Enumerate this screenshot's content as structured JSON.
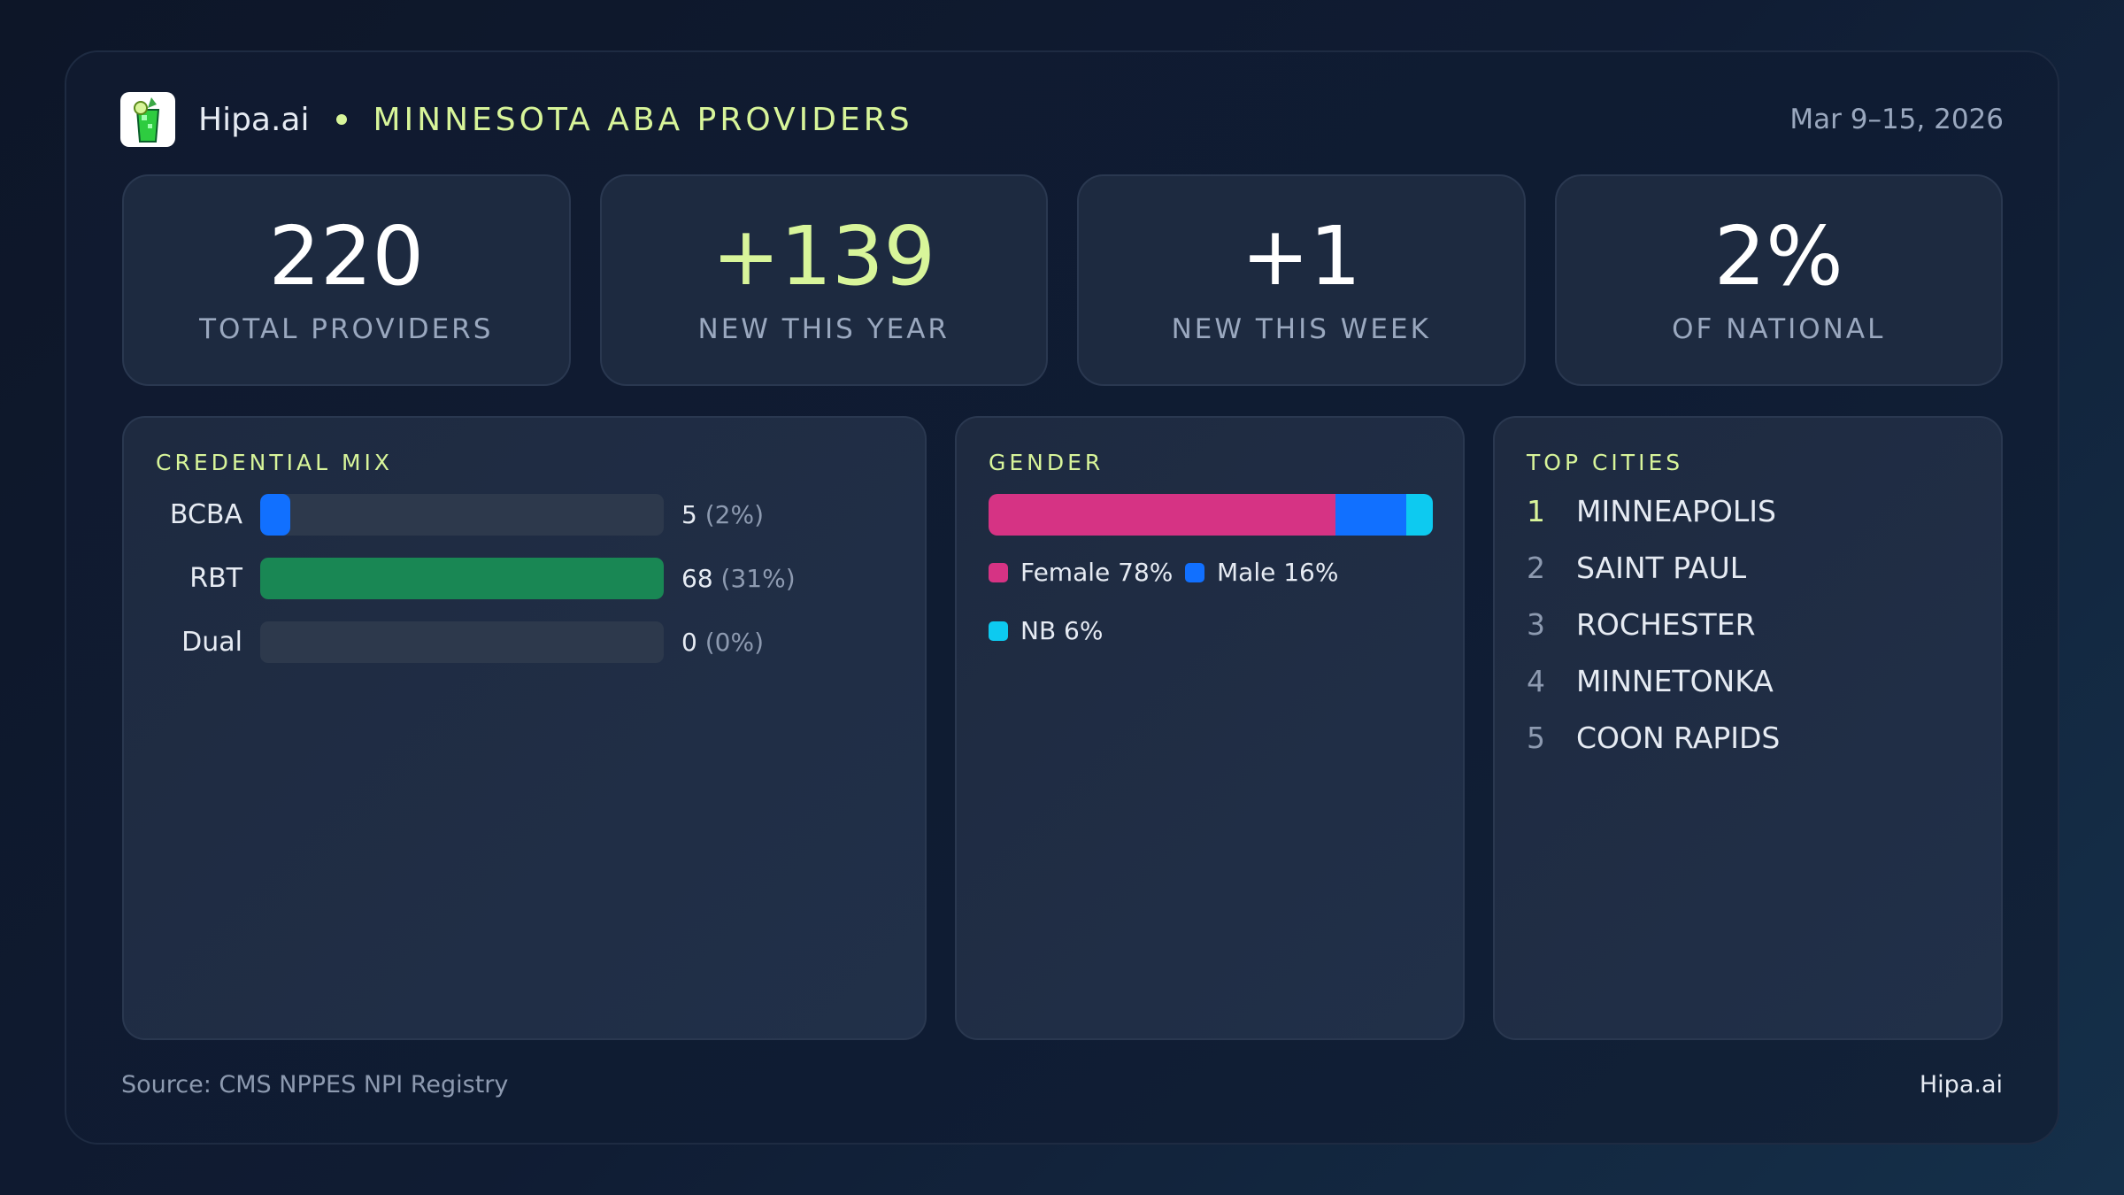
{
  "header": {
    "brand": "Hipa.ai",
    "title": "MINNESOTA ABA PROVIDERS",
    "date": "Mar 9–15, 2026",
    "logo_icon": "cocktail-glass-icon"
  },
  "stats": [
    {
      "value": "220",
      "label": "TOTAL PROVIDERS",
      "accent": false
    },
    {
      "value": "+139",
      "label": "NEW THIS YEAR",
      "accent": true
    },
    {
      "value": "+1",
      "label": "NEW THIS WEEK",
      "accent": false
    },
    {
      "value": "2%",
      "label": "OF NATIONAL",
      "accent": false
    }
  ],
  "credential": {
    "heading": "CREDENTIAL MIX",
    "rows": [
      {
        "name": "BCBA",
        "count": 5,
        "count_text": "5",
        "pct_text": "(2%)",
        "color": "#1170ff"
      },
      {
        "name": "RBT",
        "count": 68,
        "count_text": "68",
        "pct_text": "(31%)",
        "color": "#198754"
      },
      {
        "name": "Dual",
        "count": 0,
        "count_text": "0",
        "pct_text": "(0%)",
        "color": "#1170ff"
      }
    ]
  },
  "gender": {
    "heading": "GENDER",
    "segments": [
      {
        "label": "Female 78%",
        "pct": 78,
        "color": "#d63384"
      },
      {
        "label": "Male 16%",
        "pct": 16,
        "color": "#1170ff"
      },
      {
        "label": "NB 6%",
        "pct": 6,
        "color": "#0dcaf0"
      }
    ]
  },
  "cities": {
    "heading": "TOP CITIES",
    "items": [
      {
        "rank": "1",
        "name": "MINNEAPOLIS"
      },
      {
        "rank": "2",
        "name": "SAINT PAUL"
      },
      {
        "rank": "3",
        "name": "ROCHESTER"
      },
      {
        "rank": "4",
        "name": "MINNETONKA"
      },
      {
        "rank": "5",
        "name": "COON RAPIDS"
      }
    ]
  },
  "footer": {
    "source": "Source: CMS NPPES NPI Registry",
    "brand": "Hipa.ai"
  },
  "colors": {
    "accent": "#d8f59a",
    "background": "#101a2f",
    "card": "#1d2a40"
  }
}
